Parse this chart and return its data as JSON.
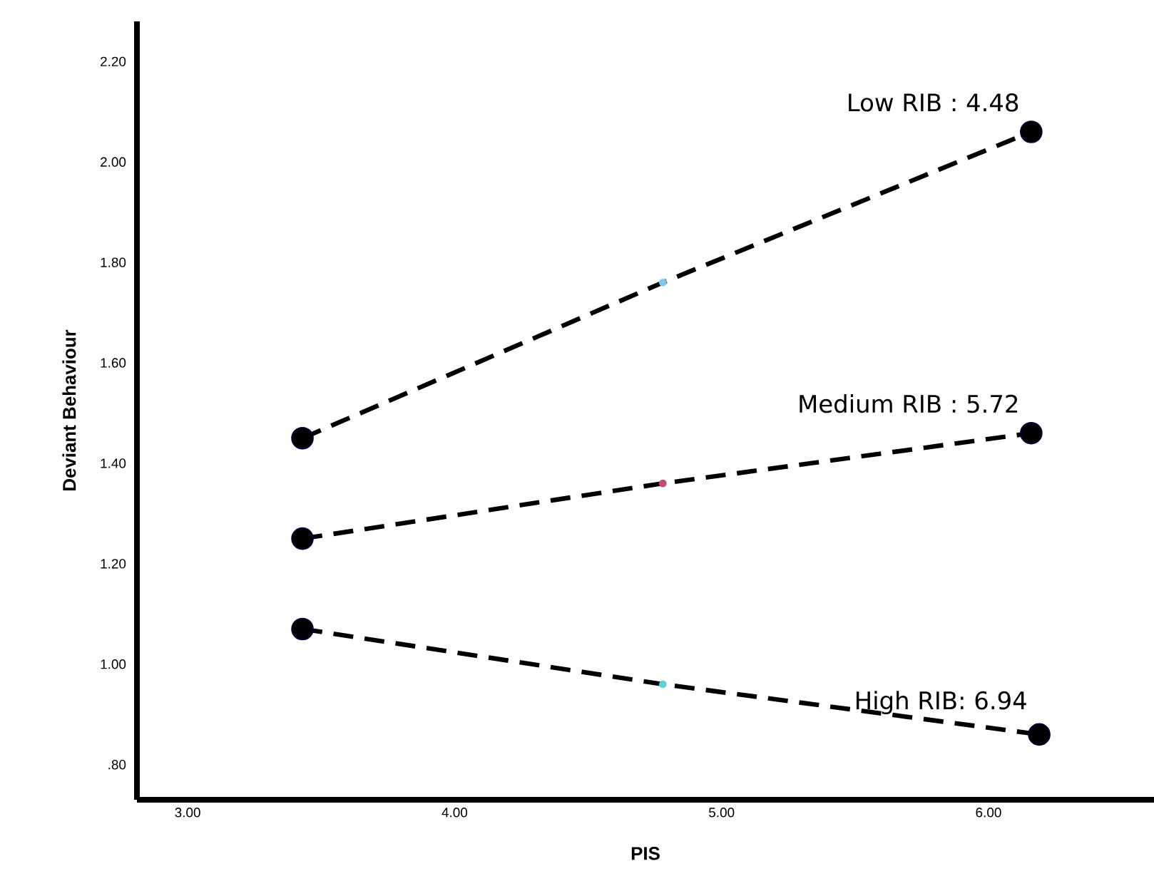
{
  "chart_data": {
    "type": "line",
    "xlabel": "PIS",
    "ylabel": "Deviant Behaviour",
    "xlim": [
      2.81,
      6.62
    ],
    "ylim": [
      0.73,
      2.28
    ],
    "xticks": [
      {
        "value": 3,
        "label": "3.00"
      },
      {
        "value": 4,
        "label": "4.00"
      },
      {
        "value": 5,
        "label": "5.00"
      },
      {
        "value": 6,
        "label": "6.00"
      }
    ],
    "yticks": [
      {
        "value": 0.8,
        "label": ".80"
      },
      {
        "value": 1.0,
        "label": "1.00"
      },
      {
        "value": 1.2,
        "label": "1.20"
      },
      {
        "value": 1.4,
        "label": "1.40"
      },
      {
        "value": 1.6,
        "label": "1.60"
      },
      {
        "value": 1.8,
        "label": "1.80"
      },
      {
        "value": 2.0,
        "label": "2.00"
      },
      {
        "value": 2.2,
        "label": "2.20"
      }
    ],
    "grid": false,
    "line_style": "dashed",
    "series": [
      {
        "name": "Low RIB : 4.48",
        "color": "#000000",
        "marker": "none",
        "x": [
          3.43,
          4.78,
          6.16
        ],
        "values": [
          1.45,
          1.76,
          2.06
        ]
      },
      {
        "name": "Medium RIB : 5.72",
        "color": "#000000",
        "marker": "none",
        "x": [
          3.43,
          4.78,
          6.16
        ],
        "values": [
          1.25,
          1.36,
          1.46
        ]
      },
      {
        "name": "High RIB: 6.94",
        "color": "#000000",
        "marker": "none",
        "x": [
          3.43,
          4.78,
          6.19
        ],
        "values": [
          1.07,
          0.96,
          0.86
        ]
      },
      {
        "type": "scatter",
        "color": "#000000",
        "marker": "circle",
        "x": [
          3.43,
          6.16,
          3.43,
          6.16,
          3.43,
          6.19
        ],
        "values": [
          1.45,
          2.06,
          1.25,
          1.46,
          1.07,
          0.86
        ]
      },
      {
        "type": "scatter",
        "colors": [
          "#7fc8f0",
          "#c05070",
          "#60d0d8"
        ],
        "marker": "circle",
        "x": [
          4.78,
          4.78,
          4.78
        ],
        "values": [
          1.76,
          1.36,
          0.96
        ]
      }
    ]
  }
}
